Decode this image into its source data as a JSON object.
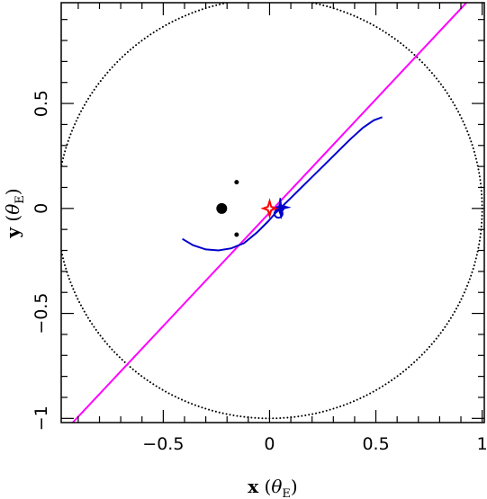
{
  "chart_data": {
    "type": "scatter",
    "title": "",
    "xlabel_text": "x",
    "ylabel_text": "y",
    "unit_symbol": "θ",
    "unit_sub": "E",
    "xlim": [
      -0.98,
      1.01
    ],
    "ylim": [
      -1.02,
      0.98
    ],
    "xticks_major": [
      -0.5,
      0,
      0.5,
      1
    ],
    "xtick_labels": [
      "−0.5",
      "0",
      "0.5",
      "1"
    ],
    "yticks_major": [
      -1,
      -0.5,
      0,
      0.5
    ],
    "ytick_labels": [
      "−1",
      "−0.5",
      "0",
      "0.5"
    ],
    "tick_minor_step": 0.1,
    "grid": false,
    "colors": {
      "einstein_ring": "#000000",
      "source_trajectory": "#ff00ff",
      "critical_curve": "#0000cc",
      "caustic": "#ff0000",
      "lens_mass": "#000000"
    },
    "einstein_ring": {
      "center": [
        0,
        0
      ],
      "radius": 1.0
    },
    "source_trajectory": {
      "slope": 1.08,
      "intercept": -0.02
    },
    "lens_masses": [
      {
        "x": -0.225,
        "y": 0.0,
        "size": "large"
      },
      {
        "x": -0.155,
        "y": 0.125,
        "size": "small"
      },
      {
        "x": -0.155,
        "y": -0.125,
        "size": "small"
      }
    ],
    "critical_curve": [
      [
        -0.41,
        -0.145
      ],
      [
        -0.36,
        -0.175
      ],
      [
        -0.3,
        -0.195
      ],
      [
        -0.24,
        -0.2
      ],
      [
        -0.18,
        -0.19
      ],
      [
        -0.12,
        -0.165
      ],
      [
        -0.06,
        -0.115
      ],
      [
        -0.01,
        -0.065
      ],
      [
        0.03,
        -0.02
      ],
      [
        0.06,
        0.01
      ],
      [
        0.1,
        0.05
      ],
      [
        0.15,
        0.1
      ],
      [
        0.2,
        0.15
      ],
      [
        0.26,
        0.21
      ],
      [
        0.32,
        0.27
      ],
      [
        0.38,
        0.33
      ],
      [
        0.44,
        0.385
      ],
      [
        0.49,
        0.42
      ],
      [
        0.53,
        0.435
      ]
    ],
    "central_caustic": [
      [
        0.07,
        0.0
      ],
      [
        0.09,
        0.005
      ],
      [
        0.055,
        0.015
      ],
      [
        0.05,
        0.05
      ],
      [
        0.045,
        0.012
      ],
      [
        0.02,
        0.0
      ],
      [
        0.045,
        -0.012
      ],
      [
        0.055,
        -0.04
      ],
      [
        0.06,
        -0.012
      ],
      [
        0.07,
        0.0
      ]
    ],
    "red_caustic": [
      [
        -0.03,
        0.0
      ],
      [
        -0.008,
        0.008
      ],
      [
        0.0,
        0.035
      ],
      [
        0.008,
        0.008
      ],
      [
        0.03,
        0.0
      ],
      [
        0.008,
        -0.008
      ],
      [
        0.0,
        -0.035
      ],
      [
        -0.008,
        -0.008
      ],
      [
        -0.03,
        0.0
      ]
    ],
    "source_marker": {
      "x": 0.042,
      "y": -0.025
    }
  }
}
